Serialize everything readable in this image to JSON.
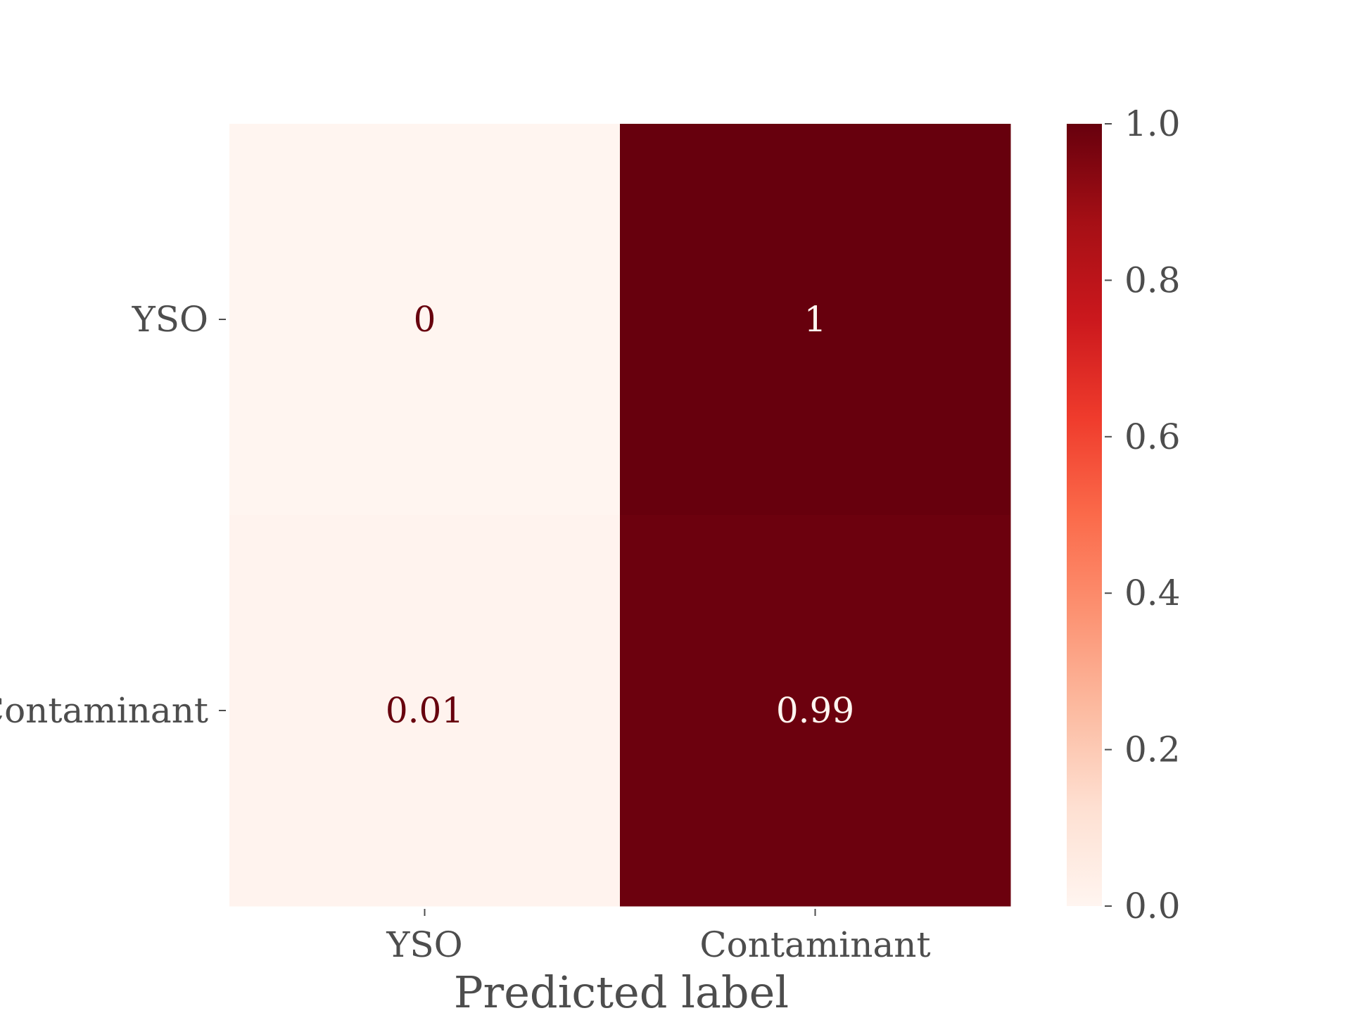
{
  "chart_data": {
    "type": "heatmap",
    "title": "",
    "xlabel": "Predicted label",
    "ylabel": "",
    "x_categories": [
      "YSO",
      "Contaminant"
    ],
    "y_categories": [
      "YSO",
      "Contaminant"
    ],
    "values": [
      [
        0.0,
        1.0
      ],
      [
        0.01,
        0.99
      ]
    ],
    "cell_labels": [
      [
        "0",
        "1"
      ],
      [
        "0.01",
        "0.99"
      ]
    ],
    "colormap": "Reds",
    "colorbar": {
      "range": [
        0.0,
        1.0
      ],
      "ticks": [
        "0.0",
        "0.2",
        "0.4",
        "0.6",
        "0.8",
        "1.0"
      ]
    },
    "grid": false,
    "colors": {
      "low": "#fff5f0",
      "high": "#67000d",
      "label_dark": "#67000d",
      "label_light": "#fff5f0",
      "text": "#4d4d4d"
    }
  }
}
